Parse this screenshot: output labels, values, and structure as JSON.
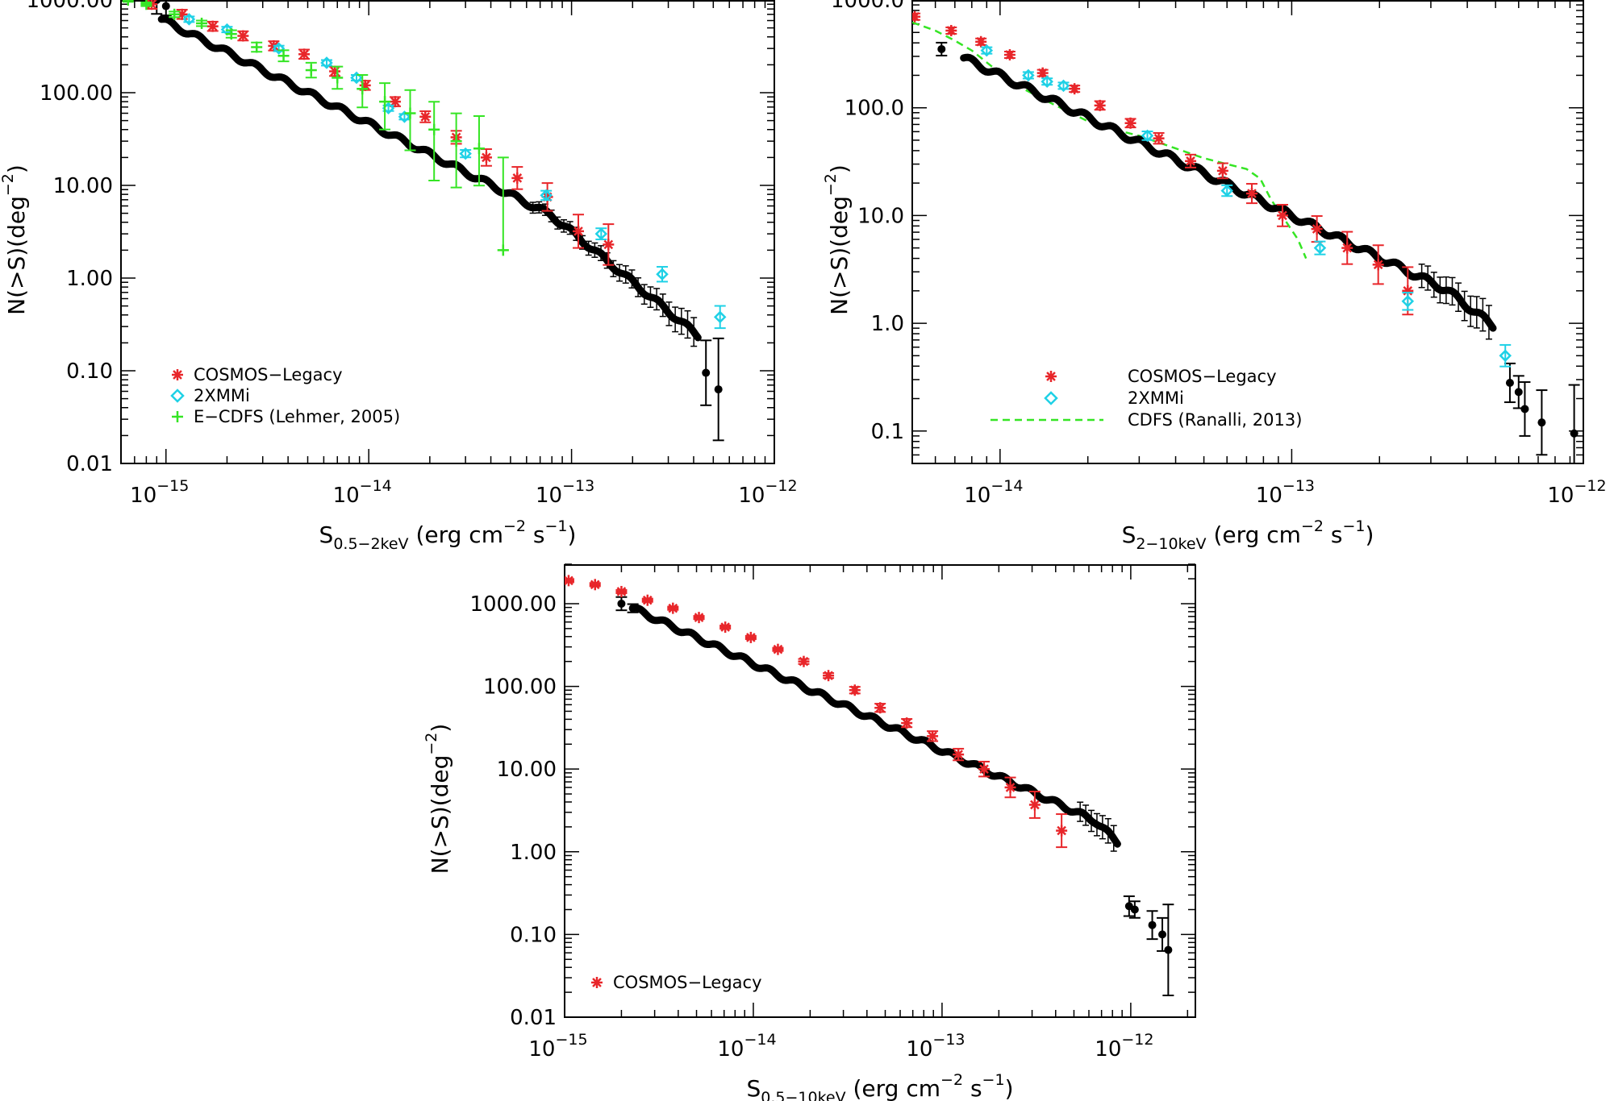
{
  "chart_data": [
    {
      "type": "scatter",
      "id": "soft",
      "xscale": "log",
      "yscale": "log",
      "xlim": [
        6e-16,
        1e-12
      ],
      "ylim": [
        0.01,
        1000
      ],
      "xticks": [
        1e-15,
        1e-14,
        1e-13,
        1e-12
      ],
      "xtick_labels": [
        {
          "base": "10",
          "exp": "−15"
        },
        {
          "base": "10",
          "exp": "−14"
        },
        {
          "base": "10",
          "exp": "−13"
        },
        {
          "base": "10",
          "exp": "−12"
        }
      ],
      "yticks": [
        0.01,
        0.1,
        1,
        10,
        100,
        1000
      ],
      "ytick_labels": [
        "0.01",
        "0.10",
        "1.00",
        "10.00",
        "100.00",
        "1000.00"
      ],
      "xlabel": {
        "main": "S",
        "sub": "0.5−2keV",
        "rest": " (erg cm",
        "exp1": "−2",
        "mid": " s",
        "exp2": "−1",
        "end": ")"
      },
      "ylabel": {
        "main": "N(>S)(deg",
        "exp": "−2",
        "end": ")"
      },
      "this_work_curve": {
        "s_min": 9.5e-16,
        "s_max": 4.2e-13,
        "n_at_min": 620,
        "slope": 1.1,
        "steepen_above": 8e-14,
        "slope_high": 1.8
      },
      "this_work_points": [
        {
          "x": 9e-16,
          "y": 1000,
          "err": 0.15
        },
        {
          "x": 1e-15,
          "y": 860,
          "err": 0.1
        },
        {
          "x": 4.6e-13,
          "y": 0.095,
          "err": 0.35
        },
        {
          "x": 5.3e-13,
          "y": 0.063,
          "err": 0.55
        }
      ],
      "series": [
        {
          "name": "COSMOS−Legacy",
          "marker": "star",
          "color": "#e8262a",
          "x": [
            8.5e-16,
            1.2e-15,
            1.7e-15,
            2.4e-15,
            3.4e-15,
            4.8e-15,
            6.8e-15,
            9.6e-15,
            1.35e-14,
            1.9e-14,
            2.7e-14,
            3.8e-14,
            5.4e-14,
            7.6e-14,
            1.08e-13,
            1.52e-13
          ],
          "y": [
            900,
            700,
            520,
            410,
            320,
            260,
            170,
            120,
            80,
            55,
            33,
            20,
            12,
            7.5,
            3.2,
            2.3
          ],
          "err": [
            0.05,
            0.05,
            0.05,
            0.05,
            0.05,
            0.05,
            0.05,
            0.05,
            0.05,
            0.06,
            0.07,
            0.09,
            0.12,
            0.15,
            0.18,
            0.22
          ]
        },
        {
          "name": "2XMMi",
          "marker": "diamond",
          "color": "#1fd1e6",
          "x": [
            1.3e-15,
            2e-15,
            3.6e-15,
            6.2e-15,
            8.7e-15,
            1.25e-14,
            1.5e-14,
            3e-14,
            7.5e-14,
            1.4e-13,
            2.8e-13,
            5.4e-13
          ],
          "y": [
            620,
            480,
            300,
            210,
            145,
            68,
            55,
            22,
            7.8,
            3.0,
            1.1,
            0.38
          ],
          "err": [
            0.03,
            0.03,
            0.03,
            0.03,
            0.03,
            0.03,
            0.03,
            0.04,
            0.05,
            0.06,
            0.08,
            0.12
          ]
        },
        {
          "name": "E−CDFS (Lehmer, 2005)",
          "marker": "plus",
          "color": "#35e524",
          "x": [
            6.5e-16,
            8e-16,
            1.1e-15,
            1.5e-15,
            2.1e-15,
            2.8e-15,
            3.8e-15,
            5.2e-15,
            7e-15,
            9.3e-15,
            1.2e-14,
            1.6e-14,
            2.1e-14,
            2.7e-14,
            3.5e-14,
            4.6e-14
          ],
          "y": [
            1000,
            900,
            700,
            560,
            430,
            310,
            250,
            175,
            145,
            110,
            80,
            60,
            40,
            30,
            25,
            2.0
          ],
          "err_lo": [
            0.02,
            0.02,
            0.03,
            0.03,
            0.04,
            0.05,
            0.06,
            0.08,
            0.12,
            0.2,
            0.3,
            0.4,
            0.55,
            0.5,
            0.4,
            0.0
          ],
          "err_hi": [
            0.02,
            0.02,
            0.03,
            0.03,
            0.04,
            0.05,
            0.06,
            0.08,
            0.12,
            0.15,
            0.2,
            0.25,
            0.3,
            0.3,
            0.35,
            1.0
          ]
        }
      ],
      "legend_position": "bottom-left"
    },
    {
      "type": "scatter",
      "id": "hard",
      "xscale": "log",
      "yscale": "log",
      "xlim": [
        5e-15,
        1e-12
      ],
      "ylim": [
        0.05,
        1000
      ],
      "xticks": [
        1e-14,
        1e-13,
        1e-12
      ],
      "xtick_labels": [
        {
          "base": "10",
          "exp": "−14"
        },
        {
          "base": "10",
          "exp": "−13"
        },
        {
          "base": "10",
          "exp": "−12"
        }
      ],
      "yticks": [
        0.1,
        1,
        10,
        100,
        1000
      ],
      "ytick_labels": [
        "0.1",
        "1.0",
        "10.0",
        "100.0",
        "1000.0"
      ],
      "xlabel": {
        "main": "S",
        "sub": "2−10keV",
        "rest": " (erg cm",
        "exp1": "−2",
        "mid": " s",
        "exp2": "−1",
        "end": ")"
      },
      "ylabel": {
        "main": "N(>S)(deg",
        "exp": "−2",
        "end": ")"
      },
      "this_work_curve": {
        "s_min": 7.5e-15,
        "s_max": 4.9e-13,
        "n_at_min": 290,
        "slope": 1.3,
        "steepen_above": 3.4e-13,
        "slope_high": 2.1
      },
      "this_work_points": [
        {
          "x": 6.3e-15,
          "y": 350,
          "err": 0.06
        },
        {
          "x": 5.6e-13,
          "y": 0.28,
          "err": 0.18
        },
        {
          "x": 6e-13,
          "y": 0.23,
          "err": 0.15
        },
        {
          "x": 6.3e-13,
          "y": 0.16,
          "err": 0.25
        },
        {
          "x": 7.2e-13,
          "y": 0.12,
          "err": 0.3
        },
        {
          "x": 9.3e-13,
          "y": 0.095,
          "err": 0.45
        }
      ],
      "series": [
        {
          "name": "COSMOS−Legacy",
          "marker": "star",
          "color": "#e8262a",
          "x": [
            5.1e-15,
            6.8e-15,
            8.6e-15,
            1.08e-14,
            1.4e-14,
            1.8e-14,
            2.2e-14,
            2.8e-14,
            3.5e-14,
            4.5e-14,
            5.8e-14,
            7.3e-14,
            9.3e-14,
            1.22e-13,
            1.55e-13,
            1.98e-13,
            2.5e-13
          ],
          "y": [
            700,
            520,
            410,
            310,
            210,
            150,
            105,
            72,
            52,
            32,
            26,
            16,
            10,
            7.5,
            5.0,
            3.5,
            2.0
          ],
          "err": [
            0.03,
            0.03,
            0.03,
            0.03,
            0.03,
            0.03,
            0.04,
            0.04,
            0.05,
            0.06,
            0.07,
            0.09,
            0.1,
            0.12,
            0.15,
            0.18,
            0.22
          ]
        },
        {
          "name": "2XMMi",
          "marker": "diamond",
          "color": "#1fd1e6",
          "x": [
            9e-15,
            1.25e-14,
            1.45e-14,
            1.65e-14,
            3.2e-14,
            6e-14,
            1.25e-13,
            2.5e-13,
            5.4e-13
          ],
          "y": [
            340,
            200,
            175,
            160,
            55,
            17,
            5.0,
            1.6,
            0.5
          ],
          "err": [
            0.03,
            0.03,
            0.03,
            0.03,
            0.04,
            0.05,
            0.06,
            0.08,
            0.1
          ]
        }
      ],
      "dashed_curve": {
        "name": "CDFS (Ranalli, 2013)",
        "color": "#35e524",
        "x": [
          5e-15,
          6e-15,
          7e-15,
          8e-15,
          1e-14,
          1.2e-14,
          1.5e-14,
          2e-14,
          2.5e-14,
          3e-14,
          4e-14,
          5e-14,
          6e-14,
          7e-14,
          7.8e-14,
          8.5e-14,
          9.5e-14,
          1.05e-13,
          1.12e-13
        ],
        "y": [
          620,
          520,
          420,
          340,
          210,
          150,
          110,
          75,
          62,
          55,
          42,
          34,
          30,
          27,
          22,
          14,
          9,
          6,
          4
        ]
      },
      "legend_position": "bottom-left"
    },
    {
      "type": "scatter",
      "id": "full",
      "xscale": "log",
      "yscale": "log",
      "xlim": [
        1e-15,
        2.2e-12
      ],
      "ylim": [
        0.01,
        3000
      ],
      "xticks": [
        1e-15,
        1e-14,
        1e-13,
        1e-12
      ],
      "xtick_labels": [
        {
          "base": "10",
          "exp": "−15"
        },
        {
          "base": "10",
          "exp": "−14"
        },
        {
          "base": "10",
          "exp": "−13"
        },
        {
          "base": "10",
          "exp": "−12"
        }
      ],
      "yticks": [
        0.01,
        0.1,
        1,
        10,
        100,
        1000
      ],
      "ytick_labels": [
        "0.01",
        "0.10",
        "1.00",
        "10.00",
        "100.00",
        "1000.00"
      ],
      "xlabel": {
        "main": "S",
        "sub": "0.5−10keV",
        "rest": " (erg cm",
        "exp1": "−2",
        "mid": " s",
        "exp2": "−1",
        "end": ")"
      },
      "ylabel": {
        "main": "N(>S)(deg",
        "exp": "−2",
        "end": ")"
      },
      "this_work_curve": {
        "s_min": 2.3e-15,
        "s_max": 8.5e-13,
        "n_at_min": 880,
        "slope": 1.05,
        "steepen_above": 6.5e-13,
        "slope_high": 2.2
      },
      "this_work_points": [
        {
          "x": 2e-15,
          "y": 1000,
          "err": 0.08
        },
        {
          "x": 2.3e-15,
          "y": 880,
          "err": 0.05
        },
        {
          "x": 9.8e-13,
          "y": 0.22,
          "err": 0.12
        },
        {
          "x": 1.05e-12,
          "y": 0.2,
          "err": 0.1
        },
        {
          "x": 1.3e-12,
          "y": 0.13,
          "err": 0.17
        },
        {
          "x": 1.47e-12,
          "y": 0.1,
          "err": 0.2
        },
        {
          "x": 1.58e-12,
          "y": 0.065,
          "err": 0.55
        }
      ],
      "series": [
        {
          "name": "COSMOS−Legacy",
          "marker": "star",
          "color": "#e8262a",
          "x": [
            1.05e-15,
            1.45e-15,
            2e-15,
            2.75e-15,
            3.75e-15,
            5.15e-15,
            7.1e-15,
            9.7e-15,
            1.35e-14,
            1.85e-14,
            2.5e-14,
            3.45e-14,
            4.7e-14,
            6.5e-14,
            8.9e-14,
            1.22e-13,
            1.67e-13,
            2.3e-13,
            3.1e-13,
            4.3e-13
          ],
          "y": [
            1900,
            1700,
            1400,
            1100,
            880,
            680,
            520,
            390,
            280,
            200,
            135,
            90,
            55,
            36,
            25,
            15,
            10,
            6.0,
            3.7,
            1.8
          ],
          "err": [
            0.02,
            0.02,
            0.02,
            0.02,
            0.02,
            0.02,
            0.02,
            0.02,
            0.02,
            0.03,
            0.03,
            0.04,
            0.05,
            0.05,
            0.06,
            0.07,
            0.09,
            0.12,
            0.16,
            0.2
          ]
        }
      ],
      "legend_position": "bottom-left"
    }
  ]
}
